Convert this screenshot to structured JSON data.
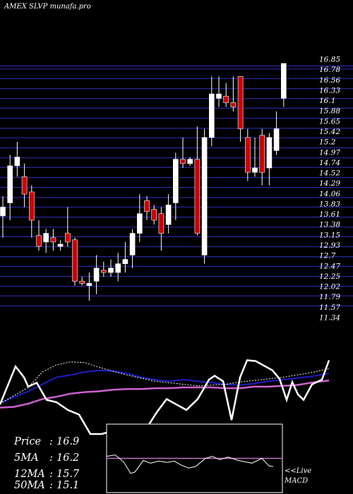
{
  "chart_data": {
    "type": "candlestick",
    "title": "AMEX  SLVP  munafa.pro",
    "y_ticks": [
      "16.85",
      "16.78",
      "16.56",
      "16.33",
      "16.1",
      "15.88",
      "15.65",
      "15.42",
      "15.2",
      "14.97",
      "14.74",
      "14.52",
      "14.29",
      "14.06",
      "13.83",
      "13.61",
      "13.38",
      "13.15",
      "12.93",
      "12.7",
      "12.47",
      "12.25",
      "12.02",
      "11.79",
      "11.57",
      "11.34"
    ],
    "ylim": [
      11.34,
      16.85
    ],
    "grid": true,
    "candles": [
      {
        "o": 13.4,
        "h": 13.85,
        "l": 12.9,
        "c": 13.6
      },
      {
        "o": 13.7,
        "h": 14.8,
        "l": 13.3,
        "c": 14.55
      },
      {
        "o": 14.55,
        "h": 15.1,
        "l": 14.3,
        "c": 14.75
      },
      {
        "o": 14.3,
        "h": 14.6,
        "l": 13.6,
        "c": 13.9
      },
      {
        "o": 13.95,
        "h": 14.1,
        "l": 12.9,
        "c": 13.3
      },
      {
        "o": 12.95,
        "h": 13.3,
        "l": 12.6,
        "c": 12.7
      },
      {
        "o": 12.8,
        "h": 13.1,
        "l": 12.55,
        "c": 13.0
      },
      {
        "o": 12.9,
        "h": 13.1,
        "l": 12.6,
        "c": 12.8
      },
      {
        "o": 12.7,
        "h": 12.85,
        "l": 12.6,
        "c": 12.75
      },
      {
        "o": 13.0,
        "h": 13.6,
        "l": 12.7,
        "c": 12.8
      },
      {
        "o": 12.85,
        "h": 12.9,
        "l": 11.8,
        "c": 11.9
      },
      {
        "o": 11.9,
        "h": 12.0,
        "l": 11.8,
        "c": 11.85
      },
      {
        "o": 11.8,
        "h": 12.1,
        "l": 11.45,
        "c": 11.85
      },
      {
        "o": 11.9,
        "h": 12.5,
        "l": 11.6,
        "c": 12.2
      },
      {
        "o": 12.15,
        "h": 12.35,
        "l": 12.0,
        "c": 12.1
      },
      {
        "o": 12.1,
        "h": 12.4,
        "l": 12.0,
        "c": 12.2
      },
      {
        "o": 12.1,
        "h": 12.55,
        "l": 11.9,
        "c": 12.3
      },
      {
        "o": 12.3,
        "h": 12.8,
        "l": 12.1,
        "c": 12.4
      },
      {
        "o": 12.5,
        "h": 13.1,
        "l": 12.2,
        "c": 13.0
      },
      {
        "o": 13.0,
        "h": 13.9,
        "l": 12.8,
        "c": 13.45
      },
      {
        "o": 13.75,
        "h": 13.85,
        "l": 13.3,
        "c": 13.5
      },
      {
        "o": 13.55,
        "h": 13.65,
        "l": 13.2,
        "c": 13.3
      },
      {
        "o": 13.45,
        "h": 13.6,
        "l": 12.6,
        "c": 13.0
      },
      {
        "o": 13.2,
        "h": 13.9,
        "l": 13.0,
        "c": 13.65
      },
      {
        "o": 13.7,
        "h": 14.85,
        "l": 13.3,
        "c": 14.7
      },
      {
        "o": 14.7,
        "h": 15.2,
        "l": 14.5,
        "c": 14.6
      },
      {
        "o": 14.6,
        "h": 14.75,
        "l": 14.55,
        "c": 14.7
      },
      {
        "o": 14.7,
        "h": 15.45,
        "l": 12.95,
        "c": 13.0
      },
      {
        "o": 12.5,
        "h": 15.4,
        "l": 12.3,
        "c": 15.2
      },
      {
        "o": 15.2,
        "h": 16.6,
        "l": 15.0,
        "c": 16.2
      },
      {
        "o": 16.1,
        "h": 16.6,
        "l": 15.9,
        "c": 16.2
      },
      {
        "o": 16.15,
        "h": 16.45,
        "l": 15.9,
        "c": 16.0
      },
      {
        "o": 16.0,
        "h": 16.6,
        "l": 15.8,
        "c": 15.9
      },
      {
        "o": 16.6,
        "h": 16.6,
        "l": 15.1,
        "c": 15.4
      },
      {
        "o": 15.2,
        "h": 15.4,
        "l": 14.2,
        "c": 14.4
      },
      {
        "o": 14.4,
        "h": 15.2,
        "l": 14.3,
        "c": 14.5
      },
      {
        "o": 15.25,
        "h": 15.4,
        "l": 14.1,
        "c": 14.4
      },
      {
        "o": 14.5,
        "h": 15.3,
        "l": 14.1,
        "c": 15.2
      },
      {
        "o": 14.9,
        "h": 15.8,
        "l": 14.8,
        "c": 15.4
      },
      {
        "o": 16.1,
        "h": 16.9,
        "l": 15.9,
        "c": 16.9
      }
    ],
    "stats": [
      {
        "label": "Price",
        "value": "16.9"
      },
      {
        "label": "5MA",
        "value": "16.2"
      },
      {
        "label": "12MA",
        "value": "15.7"
      },
      {
        "label": "50MA",
        "value": "15.1"
      }
    ],
    "indicator_price": [
      [
        0,
        0.62
      ],
      [
        22,
        0.13
      ],
      [
        34,
        0.27
      ],
      [
        40,
        0.39
      ],
      [
        52,
        0.34
      ],
      [
        66,
        0.56
      ],
      [
        80,
        0.59
      ],
      [
        96,
        0.69
      ],
      [
        112,
        0.75
      ],
      [
        128,
        1.0
      ],
      [
        144,
        1.0
      ],
      [
        160,
        0.96
      ],
      [
        176,
        0.99
      ],
      [
        192,
        1.0
      ],
      [
        208,
        0.92
      ],
      [
        222,
        0.72
      ],
      [
        236,
        0.55
      ],
      [
        250,
        0.62
      ],
      [
        264,
        0.69
      ],
      [
        280,
        0.55
      ],
      [
        296,
        0.3
      ],
      [
        304,
        0.25
      ],
      [
        316,
        0.32
      ],
      [
        328,
        0.82
      ],
      [
        340,
        0.27
      ],
      [
        350,
        0.05
      ],
      [
        362,
        0.06
      ],
      [
        374,
        0.12
      ],
      [
        386,
        0.18
      ],
      [
        396,
        0.29
      ],
      [
        406,
        0.56
      ],
      [
        414,
        0.33
      ],
      [
        422,
        0.49
      ],
      [
        430,
        0.56
      ],
      [
        442,
        0.36
      ],
      [
        456,
        0.3
      ],
      [
        466,
        0.05
      ]
    ],
    "indicator_ma_fast": [
      [
        0,
        0.61
      ],
      [
        40,
        0.4
      ],
      [
        60,
        0.2
      ],
      [
        80,
        0.11
      ],
      [
        100,
        0.07
      ],
      [
        120,
        0.08
      ],
      [
        140,
        0.14
      ],
      [
        160,
        0.19
      ],
      [
        180,
        0.24
      ],
      [
        200,
        0.28
      ],
      [
        220,
        0.32
      ],
      [
        240,
        0.34
      ],
      [
        260,
        0.36
      ],
      [
        280,
        0.38
      ],
      [
        300,
        0.37
      ],
      [
        320,
        0.36
      ],
      [
        340,
        0.33
      ],
      [
        360,
        0.31
      ],
      [
        380,
        0.29
      ],
      [
        400,
        0.27
      ],
      [
        420,
        0.24
      ],
      [
        440,
        0.21
      ],
      [
        466,
        0.16
      ]
    ],
    "indicator_ma_mid": [
      [
        0,
        0.6
      ],
      [
        40,
        0.45
      ],
      [
        80,
        0.27
      ],
      [
        100,
        0.24
      ],
      [
        120,
        0.2
      ],
      [
        140,
        0.18
      ],
      [
        160,
        0.19
      ],
      [
        180,
        0.22
      ],
      [
        200,
        0.27
      ],
      [
        220,
        0.3
      ],
      [
        240,
        0.32
      ],
      [
        260,
        0.3
      ],
      [
        280,
        0.32
      ],
      [
        300,
        0.34
      ],
      [
        320,
        0.36
      ],
      [
        340,
        0.37
      ],
      [
        360,
        0.35
      ],
      [
        380,
        0.32
      ],
      [
        400,
        0.3
      ],
      [
        420,
        0.28
      ],
      [
        440,
        0.26
      ],
      [
        466,
        0.22
      ]
    ],
    "indicator_ma_slow": [
      [
        0,
        0.66
      ],
      [
        20,
        0.65
      ],
      [
        40,
        0.61
      ],
      [
        60,
        0.55
      ],
      [
        80,
        0.52
      ],
      [
        100,
        0.48
      ],
      [
        120,
        0.46
      ],
      [
        140,
        0.45
      ],
      [
        160,
        0.43
      ],
      [
        180,
        0.42
      ],
      [
        200,
        0.42
      ],
      [
        220,
        0.41
      ],
      [
        240,
        0.41
      ],
      [
        260,
        0.4
      ],
      [
        280,
        0.4
      ],
      [
        300,
        0.4
      ],
      [
        320,
        0.41
      ],
      [
        340,
        0.41
      ],
      [
        360,
        0.39
      ],
      [
        380,
        0.39
      ],
      [
        400,
        0.38
      ],
      [
        420,
        0.37
      ],
      [
        440,
        0.34
      ],
      [
        466,
        0.31
      ]
    ],
    "macd_line": [
      [
        0,
        0.47
      ],
      [
        12,
        0.45
      ],
      [
        24,
        0.55
      ],
      [
        34,
        0.72
      ],
      [
        40,
        0.7
      ],
      [
        52,
        0.53
      ],
      [
        62,
        0.57
      ],
      [
        74,
        0.54
      ],
      [
        86,
        0.56
      ],
      [
        96,
        0.54
      ],
      [
        106,
        0.6
      ],
      [
        116,
        0.64
      ],
      [
        126,
        0.62
      ],
      [
        140,
        0.5
      ],
      [
        150,
        0.47
      ],
      [
        160,
        0.52
      ],
      [
        172,
        0.48
      ],
      [
        186,
        0.53
      ],
      [
        196,
        0.55
      ],
      [
        206,
        0.57
      ],
      [
        220,
        0.5
      ],
      [
        230,
        0.61
      ],
      [
        236,
        0.62
      ]
    ],
    "macd_signal": 0.5,
    "macd_label": [
      "<<Live",
      "MACD"
    ],
    "colors": {
      "bull": "#ffffff",
      "bear": "#cc0000",
      "grid": "#2828a0",
      "ma_fast": "#ffffff",
      "ma_mid": "#1e1ec8",
      "ma_slow": "#d060d0",
      "macd_signal": "#c070c0",
      "macd_line": "#ffffff"
    }
  }
}
